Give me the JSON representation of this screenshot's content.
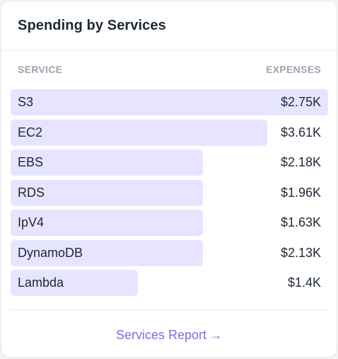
{
  "card": {
    "title": "Spending by Services",
    "columns": {
      "service": "SERVICE",
      "expenses": "EXPENSES"
    },
    "rows": [
      {
        "service": "S3",
        "expense": "$2.75K",
        "bar_fraction": 1.0
      },
      {
        "service": "EC2",
        "expense": "$3.61K",
        "bar_fraction": 0.8085
      },
      {
        "service": "EBS",
        "expense": "$2.18K",
        "bar_fraction": 0.6054
      },
      {
        "service": "RDS",
        "expense": "$1.96K",
        "bar_fraction": 0.6054
      },
      {
        "service": "IpV4",
        "expense": "$1.63K",
        "bar_fraction": 0.6054
      },
      {
        "service": "DynamoDB",
        "expense": "$2.13K",
        "bar_fraction": 0.6054
      },
      {
        "service": "Lambda",
        "expense": "$1.4K",
        "bar_fraction": 0.4013
      }
    ],
    "footer_link": {
      "label": "Services Report",
      "arrow": "→"
    },
    "colors": {
      "bar": "#e7e4ff",
      "link": "#7c6fe0"
    }
  }
}
